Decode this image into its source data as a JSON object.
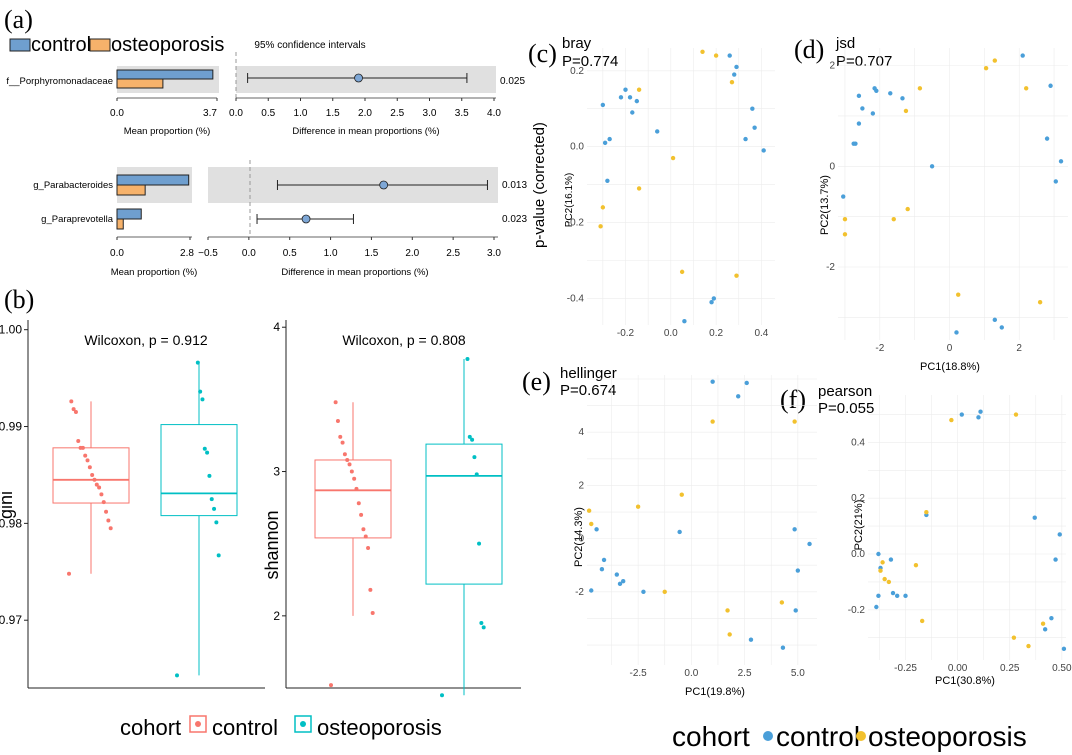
{
  "panel_labels": {
    "a": "(a)",
    "b": "(b)",
    "c": "(c)",
    "d": "(d)",
    "e": "(e)",
    "f": "(f)"
  },
  "colors": {
    "control_bar": "#6f9fcf",
    "osteo_bar": "#f6b26b",
    "control_box": "#f8766d",
    "osteo_box": "#00bfc4",
    "control_pt": "#4a9fd9",
    "osteo_pt": "#f2c12e",
    "ci_fill": "#e0e0e0",
    "ci_point": "#7ea7d6"
  },
  "chart_data": [
    {
      "id": "a1",
      "type": "bar",
      "title": "95% confidence intervals",
      "legend": [
        "control",
        "osteoporosis"
      ],
      "categories": [
        "f__Porphyromonadaceae"
      ],
      "series": [
        {
          "name": "control",
          "values": [
            3.55
          ]
        },
        {
          "name": "osteoporosis",
          "values": [
            1.7
          ]
        }
      ],
      "xlim": [
        0,
        3.7
      ],
      "xticks": [
        "0.0",
        "3.7"
      ],
      "xlabel": "Mean proportion (%)",
      "ci": {
        "xlim": [
          0,
          4
        ],
        "xticks": [
          "0.0",
          "0.5",
          "1.0",
          "1.5",
          "2.0",
          "2.5",
          "3.0",
          "3.5",
          "4.0"
        ],
        "xlabel": "Difference in mean proportions (%)",
        "rows": [
          {
            "est": 1.9,
            "lo": 0.18,
            "hi": 3.58,
            "p": "0.025"
          }
        ]
      }
    },
    {
      "id": "a2",
      "type": "bar",
      "categories": [
        "g_Parabacteroides",
        "g_Paraprevotella"
      ],
      "series": [
        {
          "name": "control",
          "values": [
            2.75,
            0.93
          ]
        },
        {
          "name": "osteoporosis",
          "values": [
            1.08,
            0.24
          ]
        }
      ],
      "xlim": [
        0,
        2.8
      ],
      "xticks": [
        "0.0",
        "2.8"
      ],
      "xlabel": "Mean proportion (%)",
      "ci": {
        "xlim": [
          -0.5,
          3
        ],
        "xticks": [
          "−0.5",
          "0.0",
          "0.5",
          "1.0",
          "1.5",
          "2.0",
          "2.5",
          "3.0"
        ],
        "xlabel": "Difference in mean proportions (%)",
        "rows": [
          {
            "est": 1.65,
            "lo": 0.35,
            "hi": 2.92,
            "p": "0.013"
          },
          {
            "est": 0.7,
            "lo": 0.1,
            "hi": 1.28,
            "p": "0.023"
          }
        ]
      }
    },
    {
      "id": "b1",
      "type": "box",
      "title": "Wilcoxon, p = 0.912",
      "ylabel": "gini",
      "ylim": [
        0.963,
        1.001
      ],
      "yticks": [
        0.97,
        0.98,
        0.99,
        1.0
      ],
      "ytick_labels": [
        "0.97",
        "0.98",
        "0.99",
        "1.00"
      ],
      "groups": [
        {
          "name": "control",
          "q1": 0.9821,
          "median": 0.9845,
          "q3": 0.9878,
          "wlo": 0.9748,
          "whi": 0.9926,
          "points": [
            0.9748,
            0.9795,
            0.9803,
            0.9812,
            0.9822,
            0.983,
            0.9837,
            0.984,
            0.9845,
            0.985,
            0.9858,
            0.9865,
            0.987,
            0.9878,
            0.9878,
            0.9885,
            0.9915,
            0.9918,
            0.9926
          ]
        },
        {
          "name": "osteoporosis",
          "q1": 0.9808,
          "median": 0.9831,
          "q3": 0.9902,
          "wlo": 0.9643,
          "whi": 0.9966,
          "points": [
            0.9643,
            0.9767,
            0.9801,
            0.9815,
            0.9825,
            0.9849,
            0.9873,
            0.9877,
            0.9928,
            0.9936,
            0.9966
          ]
        }
      ]
    },
    {
      "id": "b2",
      "type": "box",
      "title": "Wilcoxon, p = 0.808",
      "ylabel": "shannon",
      "ylim": [
        1.5,
        4.05
      ],
      "yticks": [
        2,
        3,
        4
      ],
      "ytick_labels": [
        "2",
        "3",
        "4"
      ],
      "groups": [
        {
          "name": "control",
          "q1": 2.54,
          "median": 2.87,
          "q3": 3.08,
          "wlo": 2.0,
          "whi": 3.48,
          "points": [
            1.52,
            2.02,
            2.18,
            2.47,
            2.55,
            2.6,
            2.7,
            2.78,
            2.88,
            2.95,
            3.0,
            3.05,
            3.08,
            3.12,
            3.2,
            3.24,
            3.35,
            3.48
          ]
        },
        {
          "name": "osteoporosis",
          "q1": 2.22,
          "median": 2.97,
          "q3": 3.19,
          "wlo": 1.45,
          "whi": 3.78,
          "points": [
            1.45,
            1.92,
            1.95,
            2.5,
            2.98,
            3.1,
            3.22,
            3.24,
            3.78
          ]
        }
      ],
      "legend": {
        "title": "cohort",
        "items": [
          "control",
          "osteoporosis"
        ]
      }
    },
    {
      "id": "c",
      "type": "scatter",
      "title": "bray",
      "stat": "P=0.774",
      "shared_ylabel": "p-value (corrected)",
      "xlabel": "",
      "ylabel": "PC2(16.1%)",
      "xlim": [
        -0.37,
        0.46
      ],
      "ylim": [
        -0.47,
        0.26
      ],
      "xticks": [
        -0.2,
        0.0,
        0.2,
        0.4
      ],
      "xtick_labels": [
        "-0.2",
        "0.0",
        "0.2",
        "0.4"
      ],
      "yticks": [
        -0.4,
        -0.2,
        0.0,
        0.2
      ],
      "ytick_labels": [
        "-0.4",
        "-0.2",
        "0.0",
        "0.2"
      ],
      "control": [
        [
          0.26,
          0.24
        ],
        [
          0.29,
          0.21
        ],
        [
          0.28,
          0.19
        ],
        [
          0.33,
          0.02
        ],
        [
          0.37,
          0.05
        ],
        [
          0.41,
          -0.01
        ],
        [
          0.36,
          0.1
        ],
        [
          -0.06,
          0.04
        ],
        [
          -0.2,
          0.15
        ],
        [
          -0.18,
          0.13
        ],
        [
          -0.15,
          0.12
        ],
        [
          -0.3,
          0.11
        ],
        [
          -0.22,
          0.13
        ],
        [
          -0.17,
          0.09
        ],
        [
          -0.27,
          0.02
        ],
        [
          -0.29,
          0.01
        ],
        [
          -0.28,
          -0.09
        ],
        [
          0.19,
          -0.4
        ],
        [
          0.18,
          -0.41
        ],
        [
          0.06,
          -0.46
        ]
      ],
      "osteo": [
        [
          0.14,
          0.25
        ],
        [
          0.2,
          0.24
        ],
        [
          0.27,
          0.17
        ],
        [
          -0.14,
          0.15
        ],
        [
          0.01,
          -0.03
        ],
        [
          -0.14,
          -0.11
        ],
        [
          -0.3,
          -0.16
        ],
        [
          -0.31,
          -0.21
        ],
        [
          0.05,
          -0.33
        ],
        [
          0.29,
          -0.34
        ]
      ]
    },
    {
      "id": "d",
      "type": "scatter",
      "title": "jsd",
      "stat": "P=0.707",
      "xlabel": "PC1(18.8%)",
      "ylabel": "PC2(13.7%)",
      "xlim": [
        -3.2,
        3.4
      ],
      "ylim": [
        -3.45,
        2.35
      ],
      "xticks": [
        -2,
        0,
        2
      ],
      "xtick_labels": [
        "-2",
        "0",
        "2"
      ],
      "yticks": [
        -2,
        0,
        2
      ],
      "ytick_labels": [
        "-2",
        "0",
        "2"
      ],
      "control": [
        [
          2.1,
          2.2
        ],
        [
          2.9,
          1.6
        ],
        [
          3.2,
          0.1
        ],
        [
          2.8,
          0.55
        ],
        [
          3.05,
          -0.3
        ],
        [
          -2.6,
          1.4
        ],
        [
          -2.1,
          1.5
        ],
        [
          -1.7,
          1.45
        ],
        [
          -2.5,
          1.15
        ],
        [
          -2.15,
          1.55
        ],
        [
          -2.2,
          1.05
        ],
        [
          -2.6,
          0.85
        ],
        [
          -1.35,
          1.35
        ],
        [
          -2.75,
          0.45
        ],
        [
          -2.7,
          0.45
        ],
        [
          -0.5,
          0.0
        ],
        [
          -3.05,
          -0.6
        ],
        [
          1.3,
          -3.05
        ],
        [
          1.5,
          -3.2
        ],
        [
          0.2,
          -3.3
        ]
      ],
      "osteo": [
        [
          1.05,
          1.95
        ],
        [
          1.3,
          2.1
        ],
        [
          2.2,
          1.55
        ],
        [
          -0.85,
          1.55
        ],
        [
          -1.25,
          1.1
        ],
        [
          -3.0,
          -1.05
        ],
        [
          -3.0,
          -1.35
        ],
        [
          -1.6,
          -1.05
        ],
        [
          -1.2,
          -0.85
        ],
        [
          0.25,
          -2.55
        ],
        [
          2.6,
          -2.7
        ]
      ]
    },
    {
      "id": "e",
      "type": "scatter",
      "title": "hellinger",
      "stat": "P=0.674",
      "xlabel": "PC1(19.8%)",
      "ylabel": "PC2(14.3%)",
      "xlim": [
        -4.9,
        5.9
      ],
      "ylim": [
        -4.75,
        6.15
      ],
      "xticks": [
        -2.5,
        0.0,
        2.5,
        5.0
      ],
      "xtick_labels": [
        "-2.5",
        "0.0",
        "2.5",
        "5.0"
      ],
      "yticks": [
        -2,
        0,
        2,
        4
      ],
      "ytick_labels": [
        "-2",
        "0",
        "2",
        "4"
      ],
      "control": [
        [
          1.0,
          5.9
        ],
        [
          2.6,
          5.85
        ],
        [
          2.2,
          5.35
        ],
        [
          4.85,
          0.35
        ],
        [
          5.55,
          -0.2
        ],
        [
          5.0,
          -1.2
        ],
        [
          4.9,
          -2.7
        ],
        [
          2.8,
          -3.8
        ],
        [
          4.3,
          -4.1
        ],
        [
          -4.45,
          0.35
        ],
        [
          -0.55,
          0.25
        ],
        [
          -4.1,
          -0.8
        ],
        [
          -4.2,
          -1.15
        ],
        [
          -3.5,
          -1.35
        ],
        [
          -3.2,
          -1.6
        ],
        [
          -3.35,
          -1.7
        ],
        [
          -4.7,
          -1.95
        ],
        [
          -2.25,
          -2.0
        ]
      ],
      "osteo": [
        [
          1.0,
          4.4
        ],
        [
          4.85,
          4.4
        ],
        [
          -2.5,
          1.2
        ],
        [
          -0.45,
          1.65
        ],
        [
          -1.25,
          -2.0
        ],
        [
          1.7,
          -2.7
        ],
        [
          4.25,
          -2.4
        ],
        [
          1.8,
          -3.6
        ],
        [
          -4.8,
          1.05
        ],
        [
          -4.7,
          0.55
        ]
      ]
    },
    {
      "id": "f",
      "type": "scatter",
      "title": "pearson",
      "stat": "P=0.055",
      "xlabel": "PC1(30.8%)",
      "ylabel": "PC2(21%)",
      "xlim": [
        -0.43,
        0.52
      ],
      "ylim": [
        -0.38,
        0.57
      ],
      "xticks": [
        -0.25,
        0.0,
        0.25,
        0.5
      ],
      "xtick_labels": [
        "-0.25",
        "0.00",
        "0.25",
        "0.50"
      ],
      "yticks": [
        -0.2,
        0.0,
        0.2,
        0.4
      ],
      "ytick_labels": [
        "-0.2",
        "0.0",
        "0.2",
        "0.4"
      ],
      "control": [
        [
          0.02,
          0.5
        ],
        [
          0.1,
          0.49
        ],
        [
          0.11,
          0.51
        ],
        [
          0.37,
          0.13
        ],
        [
          0.49,
          0.07
        ],
        [
          0.47,
          -0.02
        ],
        [
          0.45,
          -0.23
        ],
        [
          0.42,
          -0.27
        ],
        [
          0.51,
          -0.34
        ],
        [
          -0.15,
          0.14
        ],
        [
          -0.38,
          0.0
        ],
        [
          -0.37,
          -0.05
        ],
        [
          -0.32,
          -0.02
        ],
        [
          -0.31,
          -0.14
        ],
        [
          -0.29,
          -0.15
        ],
        [
          -0.25,
          -0.15
        ],
        [
          -0.38,
          -0.15
        ],
        [
          -0.39,
          -0.19
        ]
      ],
      "osteo": [
        [
          -0.03,
          0.48
        ],
        [
          0.28,
          0.5
        ],
        [
          -0.15,
          0.15
        ],
        [
          -0.36,
          -0.03
        ],
        [
          -0.37,
          -0.06
        ],
        [
          -0.35,
          -0.09
        ],
        [
          -0.33,
          -0.1
        ],
        [
          -0.2,
          -0.04
        ],
        [
          -0.17,
          -0.24
        ],
        [
          0.27,
          -0.3
        ],
        [
          0.34,
          -0.33
        ],
        [
          0.41,
          -0.25
        ]
      ]
    }
  ],
  "scatter_legend": {
    "title": "cohort",
    "items": [
      "control",
      "osteoporosis"
    ]
  }
}
